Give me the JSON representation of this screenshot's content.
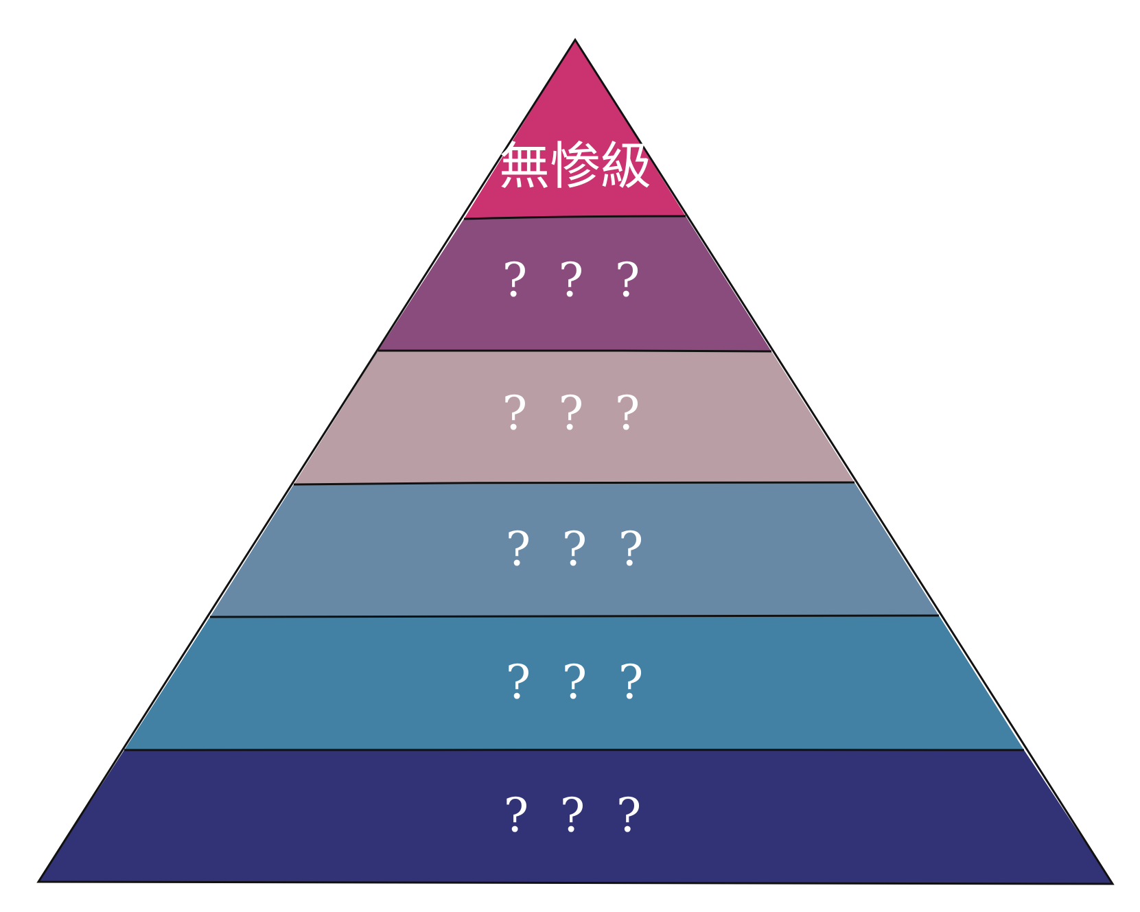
{
  "tiers": [
    {
      "label": "無惨級",
      "color": "#CB3270"
    },
    {
      "label": "? ? ?",
      "color": "#8A4C7D"
    },
    {
      "label": "? ? ?",
      "color": "#BA9EA5"
    },
    {
      "label": "? ? ?",
      "color": "#6889A5"
    },
    {
      "label": "? ? ?",
      "color": "#4280A4"
    },
    {
      "label": "? ? ?",
      "color": "#323376"
    }
  ],
  "outline_color": "#111111"
}
